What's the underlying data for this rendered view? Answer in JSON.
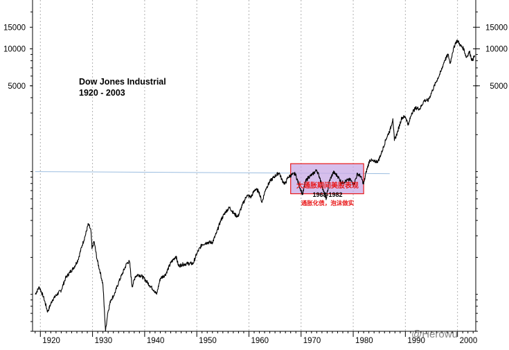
{
  "chart_data": {
    "type": "line",
    "title": "Dow Jones Industrial",
    "subtitle": "1920 - 2003",
    "xlim": [
      1918.5,
      2003.5
    ],
    "ylim": [
      50,
      25000
    ],
    "y_scale": "log",
    "x_ticks": [
      "1920",
      "1930",
      "1940",
      "1950",
      "1960",
      "1970",
      "1980",
      "1990",
      "2000"
    ],
    "x_tick_values": [
      1920,
      1930,
      1940,
      1950,
      1960,
      1970,
      1980,
      1990,
      2000
    ],
    "y_ticks": [
      "15000",
      "10000",
      "5000"
    ],
    "y_tick_values": [
      15000,
      10000,
      5000
    ],
    "grid": "vertical dashed",
    "series": [
      {
        "x": [
          1919.0,
          1919.8,
          1920.6,
          1921.4,
          1922.3,
          1923.2,
          1924.0,
          1924.8,
          1925.6,
          1926.4,
          1927.2,
          1928.0,
          1928.6,
          1929.2,
          1929.7,
          1929.9,
          1930.3,
          1930.9,
          1931.5,
          1932.0,
          1932.5,
          1932.9,
          1933.5,
          1934.2,
          1935.0,
          1935.8,
          1936.6,
          1937.1,
          1937.6,
          1938.2,
          1938.8,
          1939.5,
          1940.2,
          1941.0,
          1941.8,
          1942.3,
          1943.0,
          1944.0,
          1945.0,
          1946.0,
          1946.5,
          1947.2,
          1948.2,
          1949.3,
          1950.0,
          1951.0,
          1952.0,
          1953.0,
          1953.7,
          1954.6,
          1955.5,
          1956.3,
          1957.2,
          1957.9,
          1958.7,
          1959.6,
          1960.4,
          1961.2,
          1961.9,
          1962.5,
          1963.2,
          1964.1,
          1965.0,
          1965.8,
          1966.3,
          1966.9,
          1967.5,
          1968.2,
          1968.9,
          1969.5,
          1970.3,
          1970.8,
          1971.4,
          1972.2,
          1973.0,
          1973.6,
          1974.2,
          1974.8,
          1975.4,
          1976.2,
          1977.0,
          1977.8,
          1978.6,
          1979.4,
          1980.1,
          1980.8,
          1981.4,
          1982.0,
          1982.5,
          1983.2,
          1984.0,
          1984.8,
          1985.5,
          1986.3,
          1987.1,
          1987.6,
          1987.9,
          1988.5,
          1989.3,
          1990.0,
          1990.6,
          1991.2,
          1992.0,
          1992.8,
          1993.6,
          1994.4,
          1995.2,
          1996.0,
          1996.8,
          1997.5,
          1998.2,
          1998.6,
          1999.0,
          1999.6,
          2000.0,
          2000.6,
          2001.2,
          2001.7,
          2002.3,
          2002.8,
          2003.3
        ],
        "values": [
          100,
          115,
          95,
          72,
          90,
          100,
          108,
          135,
          150,
          165,
          190,
          250,
          300,
          375,
          330,
          235,
          270,
          190,
          150,
          120,
          50,
          70,
          90,
          100,
          125,
          150,
          180,
          185,
          115,
          140,
          145,
          140,
          130,
          118,
          108,
          100,
          135,
          145,
          180,
          205,
          170,
          175,
          178,
          178,
          215,
          255,
          265,
          265,
          310,
          400,
          470,
          510,
          450,
          430,
          530,
          640,
          620,
          720,
          690,
          560,
          720,
          840,
          920,
          980,
          860,
          790,
          900,
          940,
          960,
          800,
          650,
          820,
          900,
          950,
          1030,
          890,
          720,
          590,
          830,
          990,
          920,
          810,
          840,
          860,
          780,
          960,
          920,
          790,
          1000,
          1250,
          1200,
          1220,
          1450,
          1850,
          2200,
          2700,
          1790,
          2100,
          2750,
          2800,
          2400,
          3000,
          3300,
          3250,
          3800,
          3800,
          4600,
          5500,
          6500,
          8000,
          9000,
          7600,
          9200,
          11200,
          11700,
          10600,
          10000,
          8500,
          9500,
          8000,
          8800
        ]
      }
    ],
    "reference_line": {
      "value": 1000,
      "x_from": 1919,
      "x_to": 1987
    },
    "highlight_box": {
      "x_from": 1968,
      "x_to": 1982,
      "y_from": 660,
      "y_to": 1160
    },
    "annotation_lines": [
      "大通胀期间美股表现",
      "1968-1982",
      "通胀化债，泡沫做实"
    ],
    "watermark": "@Herowu",
    "colors": {
      "line": "#000000",
      "reference": "#9bbde0",
      "box_fill": "#c8a9e6",
      "box_border": "#e8191a",
      "annotation": "#e8191a",
      "grid": "#b0b0b0"
    }
  }
}
